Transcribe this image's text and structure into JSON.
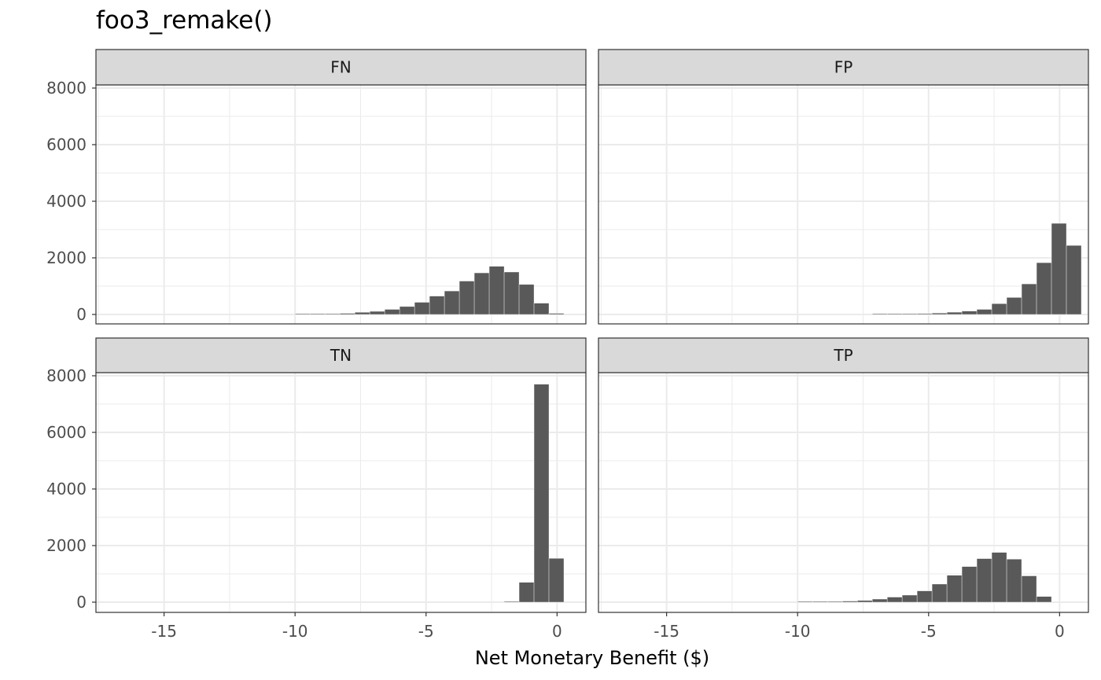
{
  "chart_data": {
    "type": "bar",
    "title": "foo3_remake()",
    "xlabel": "Net Monetary Benefit ($)",
    "ylabel": "",
    "xlim": [
      -17.6,
      1.1
    ],
    "ylim": [
      0,
      8000
    ],
    "x_ticks": [
      -15,
      -10,
      -5,
      0
    ],
    "y_ticks": [
      0,
      2000,
      4000,
      6000,
      8000
    ],
    "grid": true,
    "facet_layout": "2x2",
    "colors": {
      "bar": "#595959",
      "strip_bg": "#d9d9d9",
      "grid": "#ebebeb",
      "panel_border": "#333333"
    },
    "panels": [
      {
        "label": "FN",
        "bins": [
          {
            "x0": -17.6,
            "x1": -10.0,
            "count": 0
          },
          {
            "x0": -10.0,
            "x1": -9.43,
            "count": 5
          },
          {
            "x0": -9.43,
            "x1": -8.86,
            "count": 10
          },
          {
            "x0": -8.86,
            "x1": -8.29,
            "count": 18
          },
          {
            "x0": -8.29,
            "x1": -7.72,
            "count": 40
          },
          {
            "x0": -7.72,
            "x1": -7.15,
            "count": 75
          },
          {
            "x0": -7.15,
            "x1": -6.58,
            "count": 110
          },
          {
            "x0": -6.58,
            "x1": -6.01,
            "count": 180
          },
          {
            "x0": -6.01,
            "x1": -5.44,
            "count": 280
          },
          {
            "x0": -5.44,
            "x1": -4.87,
            "count": 430
          },
          {
            "x0": -4.87,
            "x1": -4.3,
            "count": 650
          },
          {
            "x0": -4.3,
            "x1": -3.73,
            "count": 830
          },
          {
            "x0": -3.73,
            "x1": -3.16,
            "count": 1180
          },
          {
            "x0": -3.16,
            "x1": -2.59,
            "count": 1470
          },
          {
            "x0": -2.59,
            "x1": -2.02,
            "count": 1700
          },
          {
            "x0": -2.02,
            "x1": -1.45,
            "count": 1500
          },
          {
            "x0": -1.45,
            "x1": -0.88,
            "count": 1060
          },
          {
            "x0": -0.88,
            "x1": -0.31,
            "count": 400
          },
          {
            "x0": -0.31,
            "x1": 0.26,
            "count": 40
          }
        ]
      },
      {
        "label": "FP",
        "bins": [
          {
            "x0": -7.15,
            "x1": -6.58,
            "count": 5
          },
          {
            "x0": -6.58,
            "x1": -6.01,
            "count": 10
          },
          {
            "x0": -6.01,
            "x1": -5.44,
            "count": 15
          },
          {
            "x0": -5.44,
            "x1": -4.87,
            "count": 30
          },
          {
            "x0": -4.87,
            "x1": -4.3,
            "count": 50
          },
          {
            "x0": -4.3,
            "x1": -3.73,
            "count": 80
          },
          {
            "x0": -3.73,
            "x1": -3.16,
            "count": 120
          },
          {
            "x0": -3.16,
            "x1": -2.59,
            "count": 180
          },
          {
            "x0": -2.59,
            "x1": -2.02,
            "count": 380
          },
          {
            "x0": -2.02,
            "x1": -1.45,
            "count": 600
          },
          {
            "x0": -1.45,
            "x1": -0.88,
            "count": 1080
          },
          {
            "x0": -0.88,
            "x1": -0.31,
            "count": 1830
          },
          {
            "x0": -0.31,
            "x1": 0.26,
            "count": 3220
          },
          {
            "x0": 0.26,
            "x1": 0.83,
            "count": 2440
          }
        ]
      },
      {
        "label": "TN",
        "bins": [
          {
            "x0": -2.02,
            "x1": -1.45,
            "count": 20
          },
          {
            "x0": -1.45,
            "x1": -0.88,
            "count": 700
          },
          {
            "x0": -0.88,
            "x1": -0.31,
            "count": 7700
          },
          {
            "x0": -0.31,
            "x1": 0.26,
            "count": 1550
          }
        ]
      },
      {
        "label": "TP",
        "bins": [
          {
            "x0": -10.0,
            "x1": -9.43,
            "count": 5
          },
          {
            "x0": -9.43,
            "x1": -8.86,
            "count": 10
          },
          {
            "x0": -8.86,
            "x1": -8.29,
            "count": 20
          },
          {
            "x0": -8.29,
            "x1": -7.72,
            "count": 40
          },
          {
            "x0": -7.72,
            "x1": -7.15,
            "count": 60
          },
          {
            "x0": -7.15,
            "x1": -6.58,
            "count": 110
          },
          {
            "x0": -6.58,
            "x1": -6.01,
            "count": 180
          },
          {
            "x0": -6.01,
            "x1": -5.44,
            "count": 250
          },
          {
            "x0": -5.44,
            "x1": -4.87,
            "count": 400
          },
          {
            "x0": -4.87,
            "x1": -4.3,
            "count": 640
          },
          {
            "x0": -4.3,
            "x1": -3.73,
            "count": 950
          },
          {
            "x0": -3.73,
            "x1": -3.16,
            "count": 1260
          },
          {
            "x0": -3.16,
            "x1": -2.59,
            "count": 1540
          },
          {
            "x0": -2.59,
            "x1": -2.02,
            "count": 1760
          },
          {
            "x0": -2.02,
            "x1": -1.45,
            "count": 1520
          },
          {
            "x0": -1.45,
            "x1": -0.88,
            "count": 930
          },
          {
            "x0": -0.88,
            "x1": -0.31,
            "count": 200
          }
        ]
      }
    ]
  }
}
